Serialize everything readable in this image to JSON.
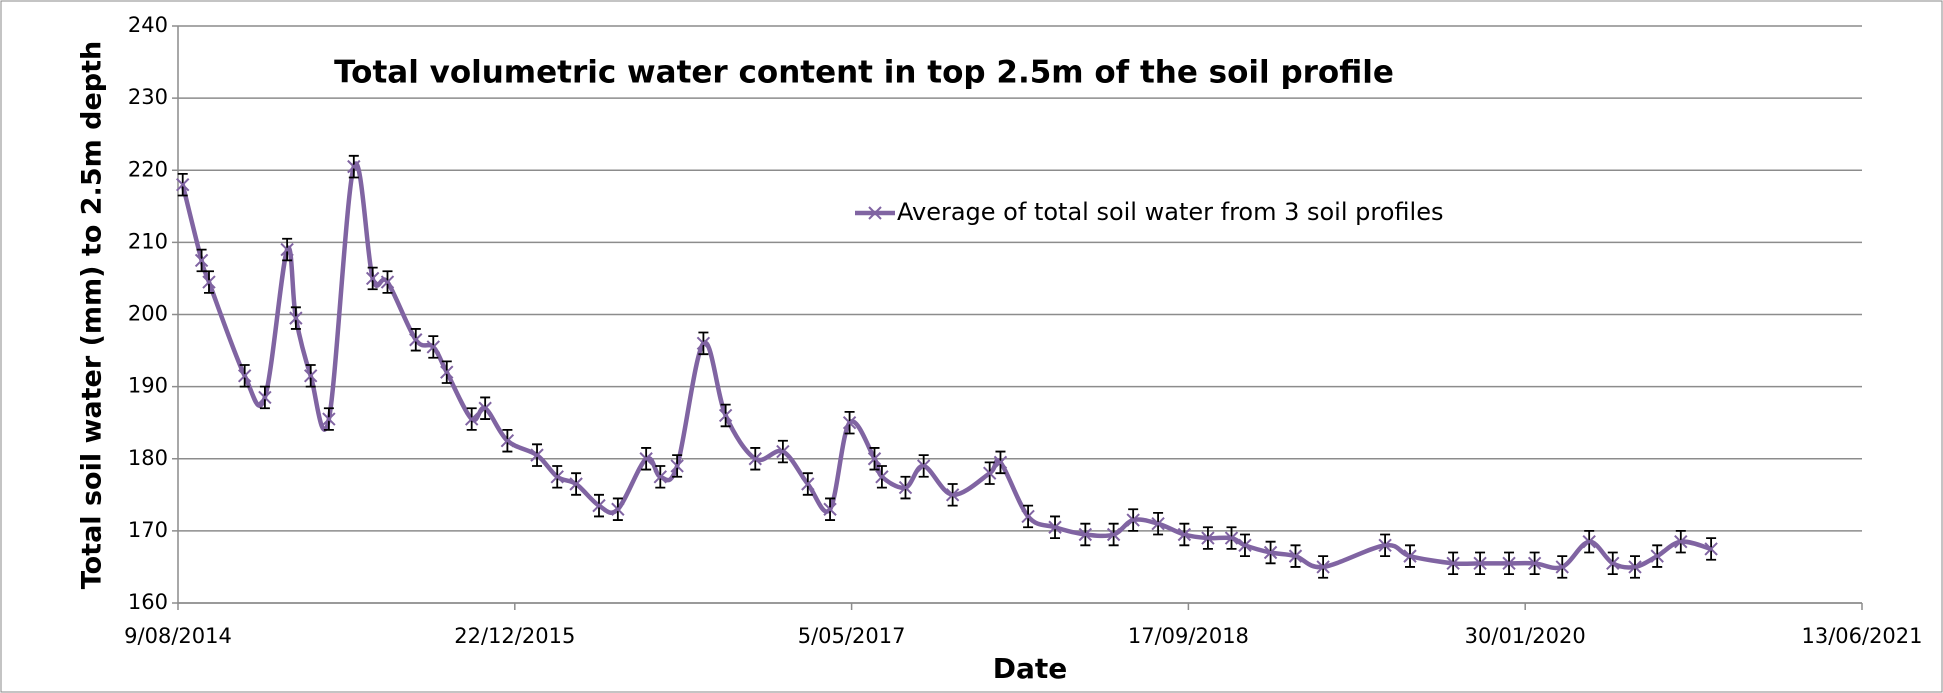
{
  "chart_data": {
    "type": "line",
    "title": "Total volumetric water content in top 2.5m of the soil profile",
    "xlabel": "Date",
    "ylabel": "Total soil water (mm) to 2.5m depth",
    "x": [
      "2014-08-16",
      "2014-09-13",
      "2014-09-24",
      "2014-11-16",
      "2014-12-16",
      "2015-01-18",
      "2015-01-31",
      "2015-02-22",
      "2015-03-21",
      "2015-04-27",
      "2015-05-25",
      "2015-06-16",
      "2015-07-28",
      "2015-08-23",
      "2015-09-12",
      "2015-10-19",
      "2015-11-08",
      "2015-12-11",
      "2016-01-24",
      "2016-02-23",
      "2016-03-22",
      "2016-04-25",
      "2016-05-23",
      "2016-07-04",
      "2016-07-25",
      "2016-08-19",
      "2016-09-27",
      "2016-10-30",
      "2016-12-13",
      "2017-01-23",
      "2017-03-01",
      "2017-04-03",
      "2017-05-02",
      "2017-06-08",
      "2017-06-19",
      "2017-07-24",
      "2017-08-20",
      "2017-10-02",
      "2017-11-26",
      "2017-12-12",
      "2018-01-22",
      "2018-03-03",
      "2018-04-17",
      "2018-05-29",
      "2018-06-27",
      "2018-08-03",
      "2018-09-11",
      "2018-10-16",
      "2018-11-20",
      "2018-12-10",
      "2019-01-17",
      "2019-02-23",
      "2019-04-05",
      "2019-07-06",
      "2019-08-12",
      "2019-10-15",
      "2019-11-24",
      "2020-01-06",
      "2020-02-13",
      "2020-03-25",
      "2020-05-04",
      "2020-06-08",
      "2020-07-11",
      "2020-08-13",
      "2020-09-17",
      "2020-11-01"
    ],
    "series": [
      {
        "name": "Average of total soil water from 3 soil profiles",
        "color": "#8064a2",
        "values": [
          218,
          207.5,
          204.5,
          191.5,
          188.5,
          209,
          199.5,
          191.5,
          185.5,
          220.5,
          205,
          204.5,
          196.5,
          195.5,
          192,
          185.5,
          187,
          182.5,
          180.5,
          177.5,
          176.5,
          173.5,
          173,
          180,
          177.5,
          179,
          196,
          186,
          180,
          181,
          176.5,
          173,
          185,
          180,
          177.5,
          176,
          179,
          175,
          178,
          179.5,
          172,
          170.5,
          169.5,
          169.5,
          171.5,
          171,
          169.5,
          169,
          169,
          168,
          167,
          166.5,
          165,
          168,
          166.5,
          165.5,
          165.5,
          165.5,
          165.5,
          165,
          168.5,
          165.5,
          165,
          166.5,
          168.5,
          167.5
        ],
        "error": 1.5
      }
    ],
    "xlim": [
      "2014-08-09",
      "2021-06-13"
    ],
    "xticks": [
      {
        "value": "2014-08-09",
        "label": "9/08/2014"
      },
      {
        "value": "2015-12-22",
        "label": "22/12/2015"
      },
      {
        "value": "2017-05-05",
        "label": "5/05/2017"
      },
      {
        "value": "2018-09-17",
        "label": "17/09/2018"
      },
      {
        "value": "2020-01-30",
        "label": "30/01/2020"
      },
      {
        "value": "2021-06-13",
        "label": "13/06/2021"
      }
    ],
    "ylim": [
      160,
      240
    ],
    "yticks": [
      160,
      170,
      180,
      190,
      200,
      210,
      220,
      230,
      240
    ],
    "grid": true
  }
}
